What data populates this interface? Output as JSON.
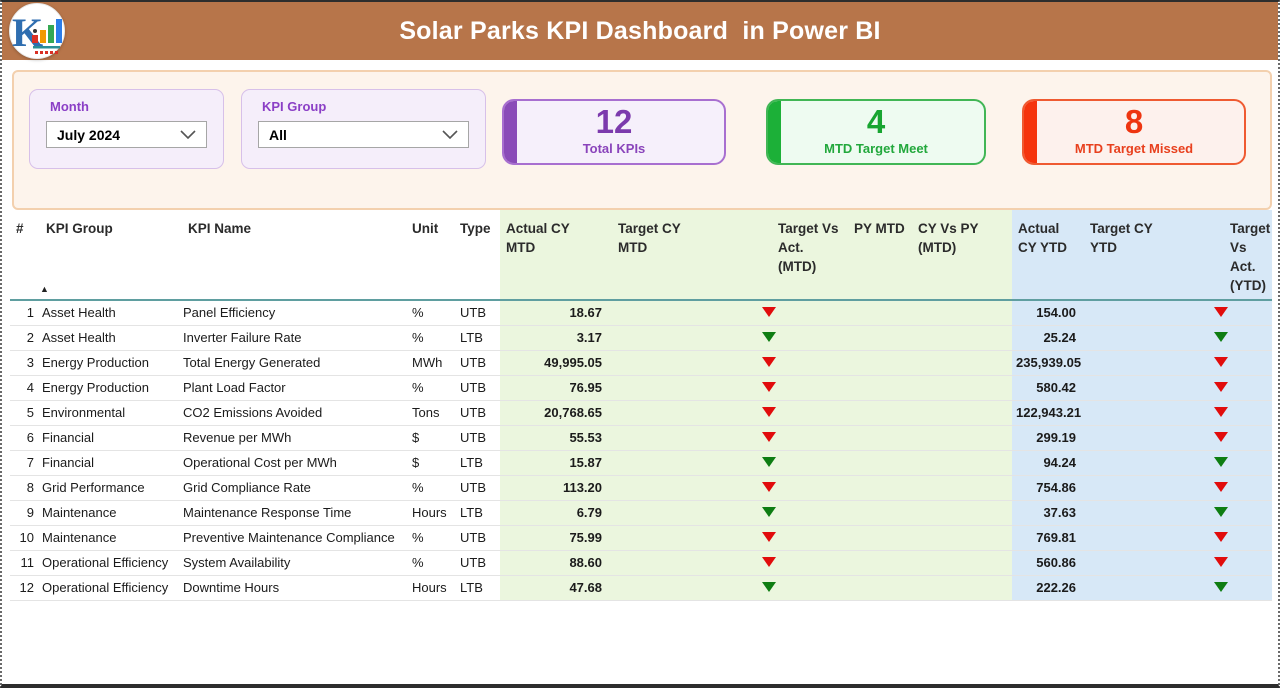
{
  "header": {
    "title": "Solar Parks KPI Dashboard  in Power BI",
    "logo_letter": "K"
  },
  "filters": {
    "month": {
      "label": "Month",
      "value": "July 2024"
    },
    "kpi_group": {
      "label": "KPI Group",
      "value": "All"
    }
  },
  "cards": [
    {
      "value": "12",
      "label": "Total KPIs",
      "accent_color": "#8a4bb8"
    },
    {
      "value": "4",
      "label": "MTD Target Meet",
      "accent_color": "#1cb038"
    },
    {
      "value": "8",
      "label": "MTD Target Missed",
      "accent_color": "#f5340d"
    }
  ],
  "status_colors": {
    "target_missed_arrow": "#e10c0c",
    "target_met_arrow": "#0e7d12"
  },
  "table": {
    "sort_indicator": "▲",
    "columns": [
      {
        "key": "num",
        "label": "#",
        "kind": "text"
      },
      {
        "key": "group",
        "label": "KPI Group",
        "kind": "text"
      },
      {
        "key": "name",
        "label": "KPI Name",
        "kind": "text"
      },
      {
        "key": "unit",
        "label": "Unit",
        "kind": "text"
      },
      {
        "key": "type",
        "label": "Type",
        "kind": "text"
      },
      {
        "key": "actual_mtd",
        "label": "Actual CY\nMTD",
        "kind": "number"
      },
      {
        "key": "target_mtd",
        "label": "Target CY\nMTD",
        "kind": "number"
      },
      {
        "key": "tva_mtd",
        "label": "Target Vs\nAct.\n(MTD)",
        "kind": "arrow"
      },
      {
        "key": "py_mtd",
        "label": "PY MTD",
        "kind": "number"
      },
      {
        "key": "cyvpy_mtd",
        "label": "CY Vs PY\n(MTD)",
        "kind": "number"
      },
      {
        "key": "actual_ytd",
        "label": "Actual\nCY YTD",
        "kind": "number"
      },
      {
        "key": "target_ytd",
        "label": "Target CY\nYTD",
        "kind": "number"
      },
      {
        "key": "tva_ytd",
        "label": "Target\nVs Act.\n(YTD)",
        "kind": "arrow"
      }
    ],
    "rows": [
      {
        "num": "1",
        "group": "Asset Health",
        "name": "Panel Efficiency",
        "unit": "%",
        "type": "UTB",
        "actual_mtd": "18.67",
        "tva_mtd": "red",
        "actual_ytd": "154.00",
        "tva_ytd": "red"
      },
      {
        "num": "2",
        "group": "Asset Health",
        "name": "Inverter Failure Rate",
        "unit": "%",
        "type": "LTB",
        "actual_mtd": "3.17",
        "tva_mtd": "green",
        "actual_ytd": "25.24",
        "tva_ytd": "green"
      },
      {
        "num": "3",
        "group": "Energy Production",
        "name": "Total Energy Generated",
        "unit": "MWh",
        "type": "UTB",
        "actual_mtd": "49,995.05",
        "tva_mtd": "red",
        "actual_ytd": "235,939.05",
        "tva_ytd": "red"
      },
      {
        "num": "4",
        "group": "Energy Production",
        "name": "Plant Load Factor",
        "unit": "%",
        "type": "UTB",
        "actual_mtd": "76.95",
        "tva_mtd": "red",
        "actual_ytd": "580.42",
        "tva_ytd": "red"
      },
      {
        "num": "5",
        "group": "Environmental",
        "name": "CO2 Emissions Avoided",
        "unit": "Tons",
        "type": "UTB",
        "actual_mtd": "20,768.65",
        "tva_mtd": "red",
        "actual_ytd": "122,943.21",
        "tva_ytd": "red"
      },
      {
        "num": "6",
        "group": "Financial",
        "name": "Revenue per MWh",
        "unit": "$",
        "type": "UTB",
        "actual_mtd": "55.53",
        "tva_mtd": "red",
        "actual_ytd": "299.19",
        "tva_ytd": "red"
      },
      {
        "num": "7",
        "group": "Financial",
        "name": "Operational Cost per MWh",
        "unit": "$",
        "type": "LTB",
        "actual_mtd": "15.87",
        "tva_mtd": "green",
        "actual_ytd": "94.24",
        "tva_ytd": "green"
      },
      {
        "num": "8",
        "group": "Grid Performance",
        "name": "Grid Compliance Rate",
        "unit": "%",
        "type": "UTB",
        "actual_mtd": "113.20",
        "tva_mtd": "red",
        "actual_ytd": "754.86",
        "tva_ytd": "red"
      },
      {
        "num": "9",
        "group": "Maintenance",
        "name": "Maintenance Response Time",
        "unit": "Hours",
        "type": "LTB",
        "actual_mtd": "6.79",
        "tva_mtd": "green",
        "actual_ytd": "37.63",
        "tva_ytd": "green"
      },
      {
        "num": "10",
        "group": "Maintenance",
        "name": "Preventive Maintenance Compliance",
        "unit": "%",
        "type": "UTB",
        "actual_mtd": "75.99",
        "tva_mtd": "red",
        "actual_ytd": "769.81",
        "tva_ytd": "red"
      },
      {
        "num": "11",
        "group": "Operational Efficiency",
        "name": "System Availability",
        "unit": "%",
        "type": "UTB",
        "actual_mtd": "88.60",
        "tva_mtd": "red",
        "actual_ytd": "560.86",
        "tva_ytd": "red"
      },
      {
        "num": "12",
        "group": "Operational Efficiency",
        "name": "Downtime Hours",
        "unit": "Hours",
        "type": "LTB",
        "actual_mtd": "47.68",
        "tva_mtd": "green",
        "actual_ytd": "222.26",
        "tva_ytd": "green"
      }
    ]
  }
}
